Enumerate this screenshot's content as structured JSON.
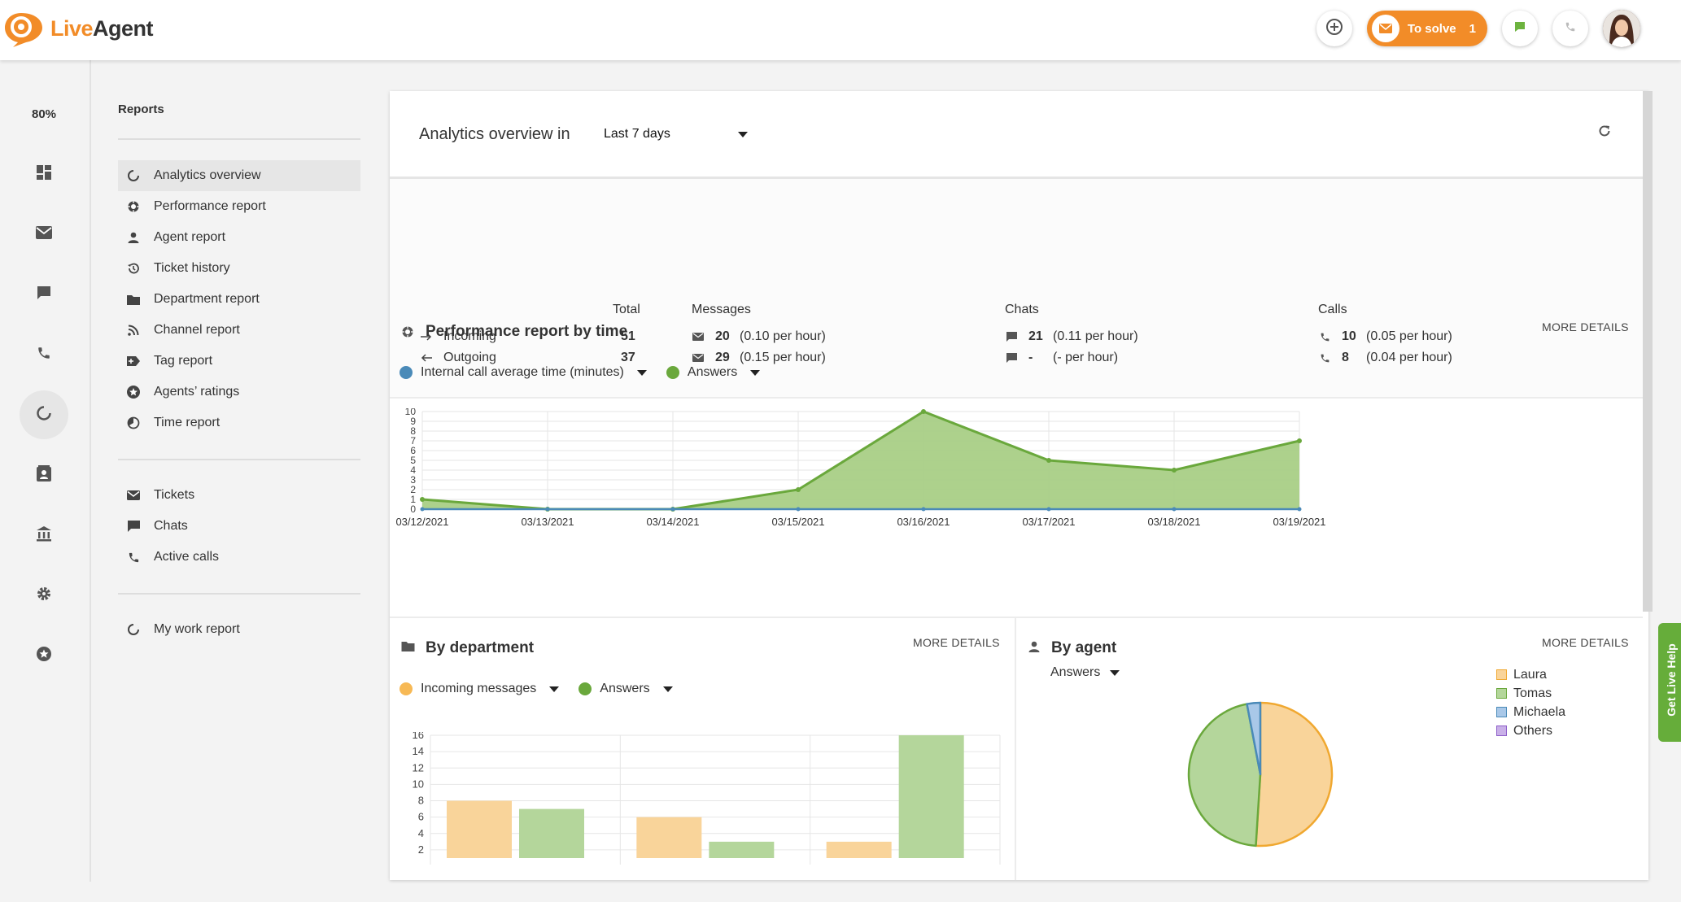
{
  "app": {
    "logo_part1": "Live",
    "logo_part2": "Agent",
    "to_solve_label": "To solve",
    "to_solve_count": "1",
    "brand_color": "#f28c28",
    "online_color": "#6db33f"
  },
  "rail": {
    "zoom": "80%",
    "icons": [
      "dashboard-icon",
      "email-icon",
      "chat-icon",
      "phone-icon",
      "reports-icon",
      "contacts-icon",
      "knowledgebase-icon",
      "settings-icon",
      "plugins-icon"
    ]
  },
  "nav": {
    "title": "Reports",
    "items": [
      {
        "label": "Analytics overview",
        "icon": "circle-chart-icon"
      },
      {
        "label": "Performance report",
        "icon": "performance-icon"
      },
      {
        "label": "Agent report",
        "icon": "person-icon"
      },
      {
        "label": "Ticket history",
        "icon": "history-icon"
      },
      {
        "label": "Department report",
        "icon": "folder-icon"
      },
      {
        "label": "Channel report",
        "icon": "rss-icon"
      },
      {
        "label": "Tag report",
        "icon": "tag-icon"
      },
      {
        "label": "Agents’ ratings",
        "icon": "star-icon"
      },
      {
        "label": "Time report",
        "icon": "clock-icon"
      }
    ],
    "group2": [
      {
        "label": "Tickets",
        "icon": "email-icon"
      },
      {
        "label": "Chats",
        "icon": "chat-icon"
      },
      {
        "label": "Active calls",
        "icon": "phone-icon"
      }
    ],
    "group3": [
      {
        "label": "My work report",
        "icon": "circle-chart-icon"
      }
    ]
  },
  "header": {
    "title": "Analytics overview in",
    "period": "Last 7 days"
  },
  "summary": {
    "col_total": "Total",
    "col_messages": "Messages",
    "col_chats": "Chats",
    "col_calls": "Calls",
    "rows": [
      {
        "label": "Incoming",
        "total": "51",
        "messages": "20",
        "messages_rate": "(0.10 per hour)",
        "chats": "21",
        "chats_rate": "(0.11 per hour)",
        "calls": "10",
        "calls_rate": "(0.05 per hour)"
      },
      {
        "label": "Outgoing",
        "total": "37",
        "messages": "29",
        "messages_rate": "(0.15 per hour)",
        "chats": "-",
        "chats_rate": "(- per hour)",
        "calls": "8",
        "calls_rate": "(0.04 per hour)"
      }
    ]
  },
  "performance": {
    "title": "Performance report by time",
    "more": "MORE DETAILS",
    "legend1": "Internal call average time (minutes)",
    "legend2": "Answers"
  },
  "department": {
    "title": "By department",
    "more": "MORE DETAILS",
    "legend1": "Incoming messages",
    "legend2": "Answers"
  },
  "agent": {
    "title": "By agent",
    "more": "MORE DETAILS",
    "metric": "Answers",
    "legend": [
      "Laura",
      "Tomas",
      "Michaela",
      "Others"
    ]
  },
  "help_tab": "Get Live Help",
  "chart_data": [
    {
      "type": "area",
      "title": "Performance report by time",
      "x": [
        "03/12/2021",
        "03/13/2021",
        "03/14/2021",
        "03/15/2021",
        "03/16/2021",
        "03/17/2021",
        "03/18/2021",
        "03/19/2021"
      ],
      "yticks": [
        0,
        1,
        2,
        3,
        4,
        5,
        6,
        7,
        8,
        9,
        10
      ],
      "ylim": [
        0,
        10
      ],
      "grid": true,
      "series": [
        {
          "name": "Internal call average time (minutes)",
          "values": [
            0,
            0,
            0,
            0,
            0,
            0,
            0,
            0
          ],
          "color": "#4a8ab8"
        },
        {
          "name": "Answers",
          "values": [
            1,
            0,
            0,
            2,
            10,
            5,
            4,
            7
          ],
          "color": "#6aa83c",
          "fill": "#a9cf86"
        }
      ]
    },
    {
      "type": "bar",
      "title": "By department",
      "categories": [
        "",
        "",
        ""
      ],
      "yticks": [
        2,
        4,
        6,
        8,
        10,
        12,
        14,
        16
      ],
      "ylim": [
        1,
        16
      ],
      "grid": true,
      "series": [
        {
          "name": "Incoming messages",
          "values": [
            8,
            6,
            3
          ],
          "color": "#f9d49a"
        },
        {
          "name": "Answers",
          "values": [
            7,
            3,
            16
          ],
          "color": "#b4d69b"
        }
      ]
    },
    {
      "type": "pie",
      "title": "By agent",
      "series": [
        {
          "name": "Laura",
          "value": 51,
          "color": "#f9d49a",
          "stroke": "#f0a830"
        },
        {
          "name": "Tomas",
          "value": 46,
          "color": "#b4d69b",
          "stroke": "#6aa83c"
        },
        {
          "name": "Michaela",
          "value": 3,
          "color": "#a9c8e8",
          "stroke": "#4a8ab8"
        },
        {
          "name": "Others",
          "value": 0,
          "color": "#c9b0e8",
          "stroke": "#8c5cc8"
        }
      ]
    }
  ]
}
